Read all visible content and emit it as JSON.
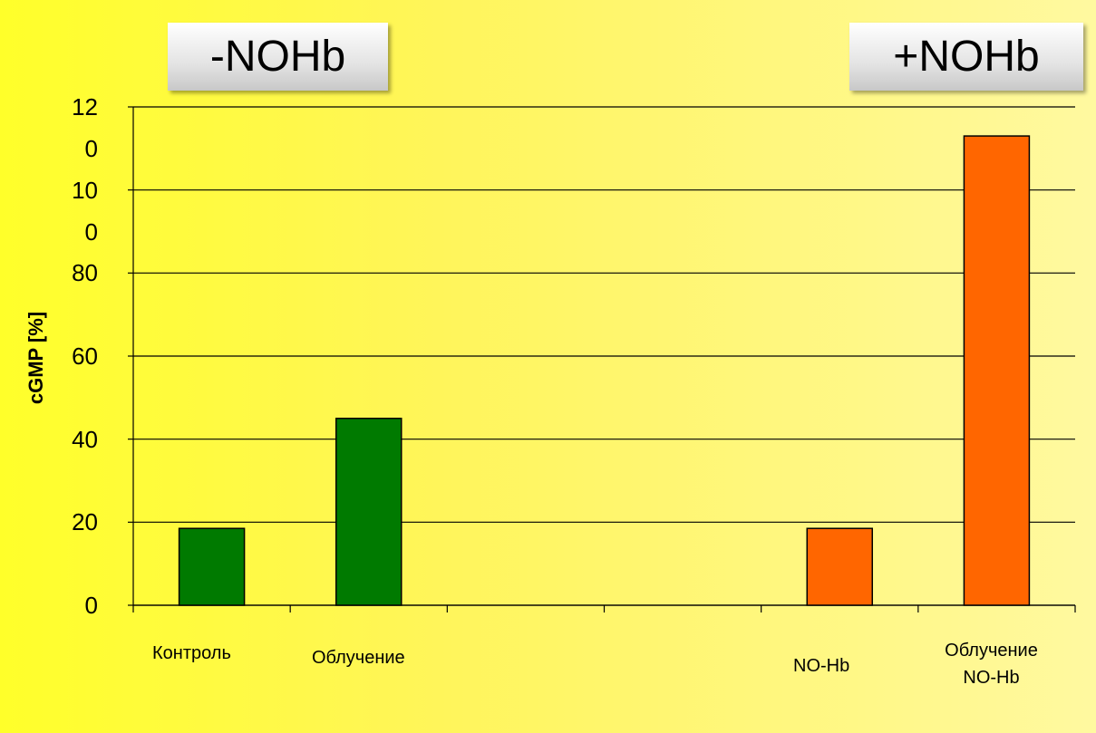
{
  "chart_data": {
    "type": "bar",
    "ylabel": "cGMP [%]",
    "annotations": [
      "-NOHb",
      "+NOHb"
    ],
    "categories": [
      "Контроль",
      "Облучение",
      null,
      null,
      "NO-Hb",
      "Облучение NO-Hb"
    ],
    "series": [
      {
        "color": "#007a00",
        "values": [
          18.5,
          45,
          null,
          null,
          null,
          null
        ]
      },
      {
        "color": "#ff6600",
        "values": [
          null,
          null,
          null,
          null,
          18.5,
          113
        ]
      }
    ],
    "ylim": [
      0,
      120
    ],
    "yticks": [
      0,
      20,
      40,
      60,
      80,
      100,
      120
    ],
    "grid": true
  }
}
